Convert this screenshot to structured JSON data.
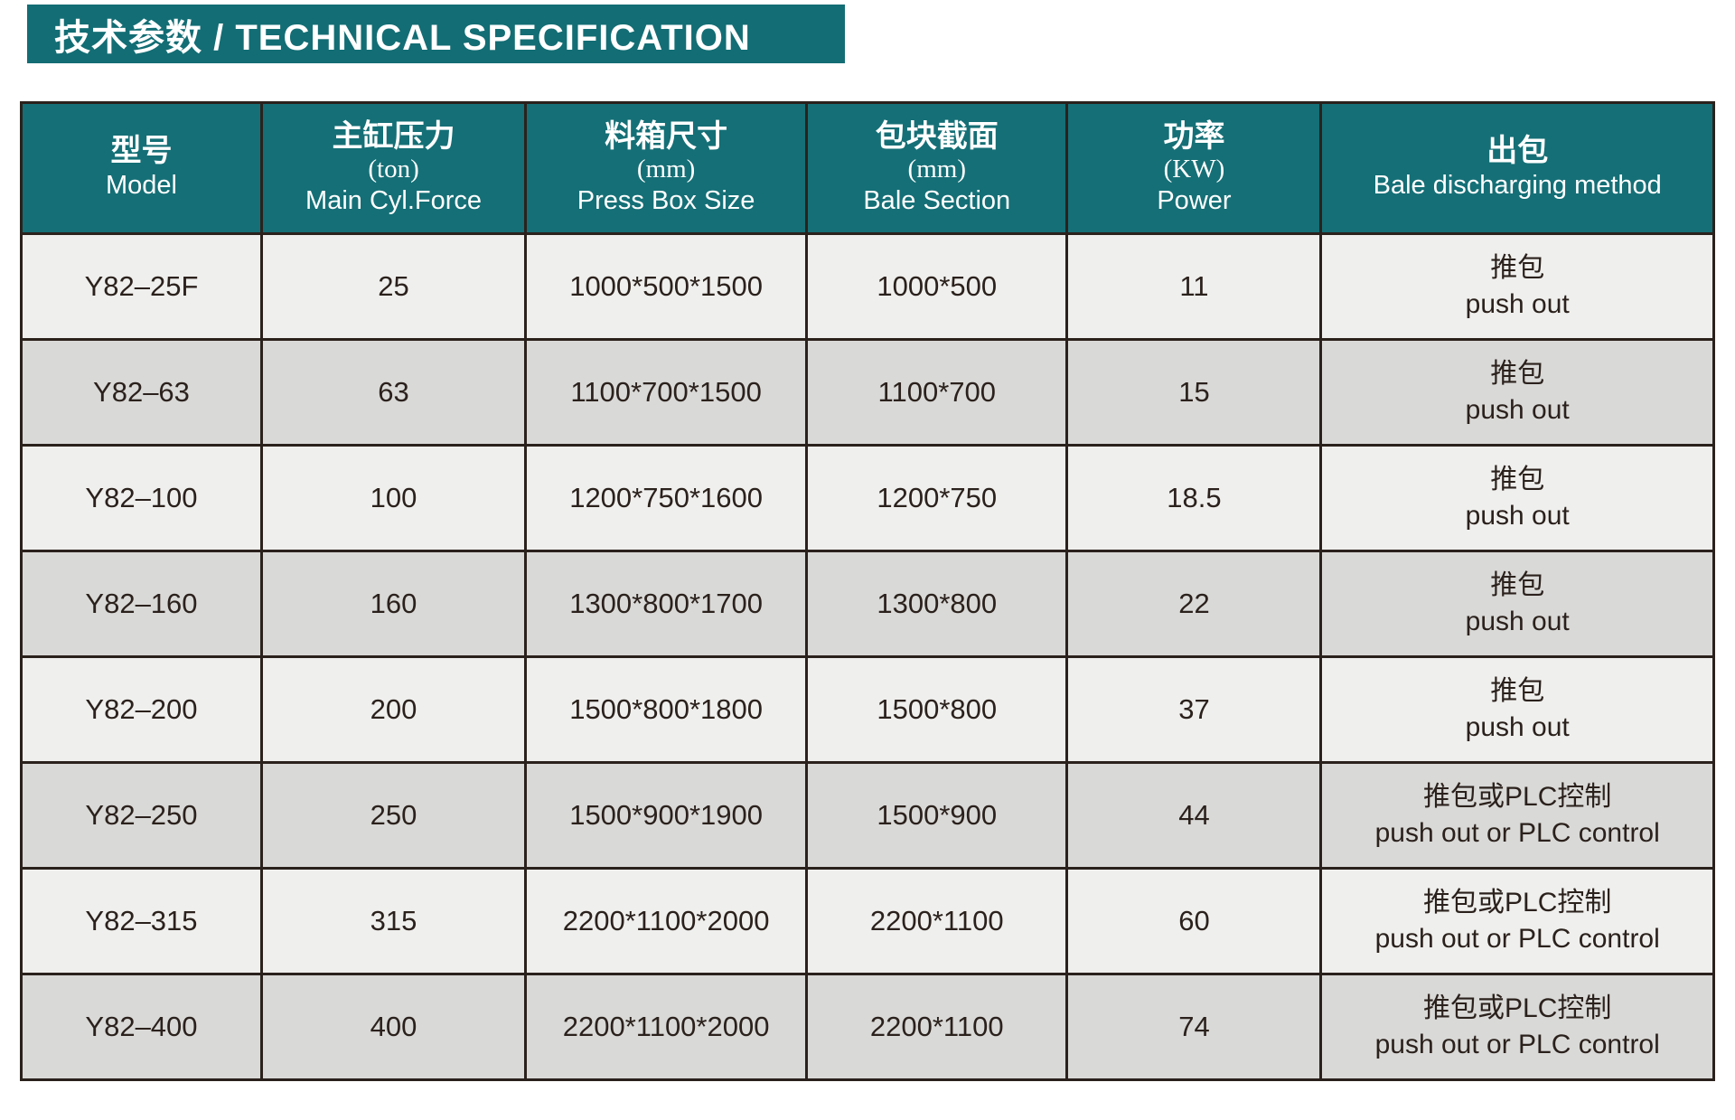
{
  "banner": {
    "title": "技术参数 / TECHNICAL SPECIFICATION"
  },
  "colors": {
    "banner_bg": "#136D74",
    "header_bg": "#156F76",
    "row_light": "#EFEFED",
    "row_dark": "#D9D9D7",
    "border": "#2B211C",
    "header_text": "#FFFFFF",
    "body_text": "#2B211C"
  },
  "table": {
    "columns": [
      {
        "zh": "型号",
        "unit": "",
        "en": "Model"
      },
      {
        "zh": "主缸压力",
        "unit": "(ton)",
        "en": "Main Cyl.Force"
      },
      {
        "zh": "料箱尺寸",
        "unit": "(mm)",
        "en": "Press Box Size"
      },
      {
        "zh": "包块截面",
        "unit": "(mm)",
        "en": "Bale Section"
      },
      {
        "zh": "功率",
        "unit": "(KW)",
        "en": "Power"
      },
      {
        "zh": "出包",
        "unit": "",
        "en": "Bale discharging method"
      }
    ],
    "rows": [
      {
        "model": "Y82–25F",
        "force": "25",
        "box": "1000*500*1500",
        "section": "1000*500",
        "power": "11",
        "discharge_zh": "推包",
        "discharge_en": "push out"
      },
      {
        "model": "Y82–63",
        "force": "63",
        "box": "1100*700*1500",
        "section": "1100*700",
        "power": "15",
        "discharge_zh": "推包",
        "discharge_en": "push out"
      },
      {
        "model": "Y82–100",
        "force": "100",
        "box": "1200*750*1600",
        "section": "1200*750",
        "power": "18.5",
        "discharge_zh": "推包",
        "discharge_en": "push out"
      },
      {
        "model": "Y82–160",
        "force": "160",
        "box": "1300*800*1700",
        "section": "1300*800",
        "power": "22",
        "discharge_zh": "推包",
        "discharge_en": "push out"
      },
      {
        "model": "Y82–200",
        "force": "200",
        "box": "1500*800*1800",
        "section": "1500*800",
        "power": "37",
        "discharge_zh": "推包",
        "discharge_en": "push out"
      },
      {
        "model": "Y82–250",
        "force": "250",
        "box": "1500*900*1900",
        "section": "1500*900",
        "power": "44",
        "discharge_zh": "推包或PLC控制",
        "discharge_en": "push out or PLC control"
      },
      {
        "model": "Y82–315",
        "force": "315",
        "box": "2200*1100*2000",
        "section": "2200*1100",
        "power": "60",
        "discharge_zh": "推包或PLC控制",
        "discharge_en": "push out or PLC control"
      },
      {
        "model": "Y82–400",
        "force": "400",
        "box": "2200*1100*2000",
        "section": "2200*1100",
        "power": "74",
        "discharge_zh": "推包或PLC控制",
        "discharge_en": "push out or PLC control"
      }
    ]
  }
}
